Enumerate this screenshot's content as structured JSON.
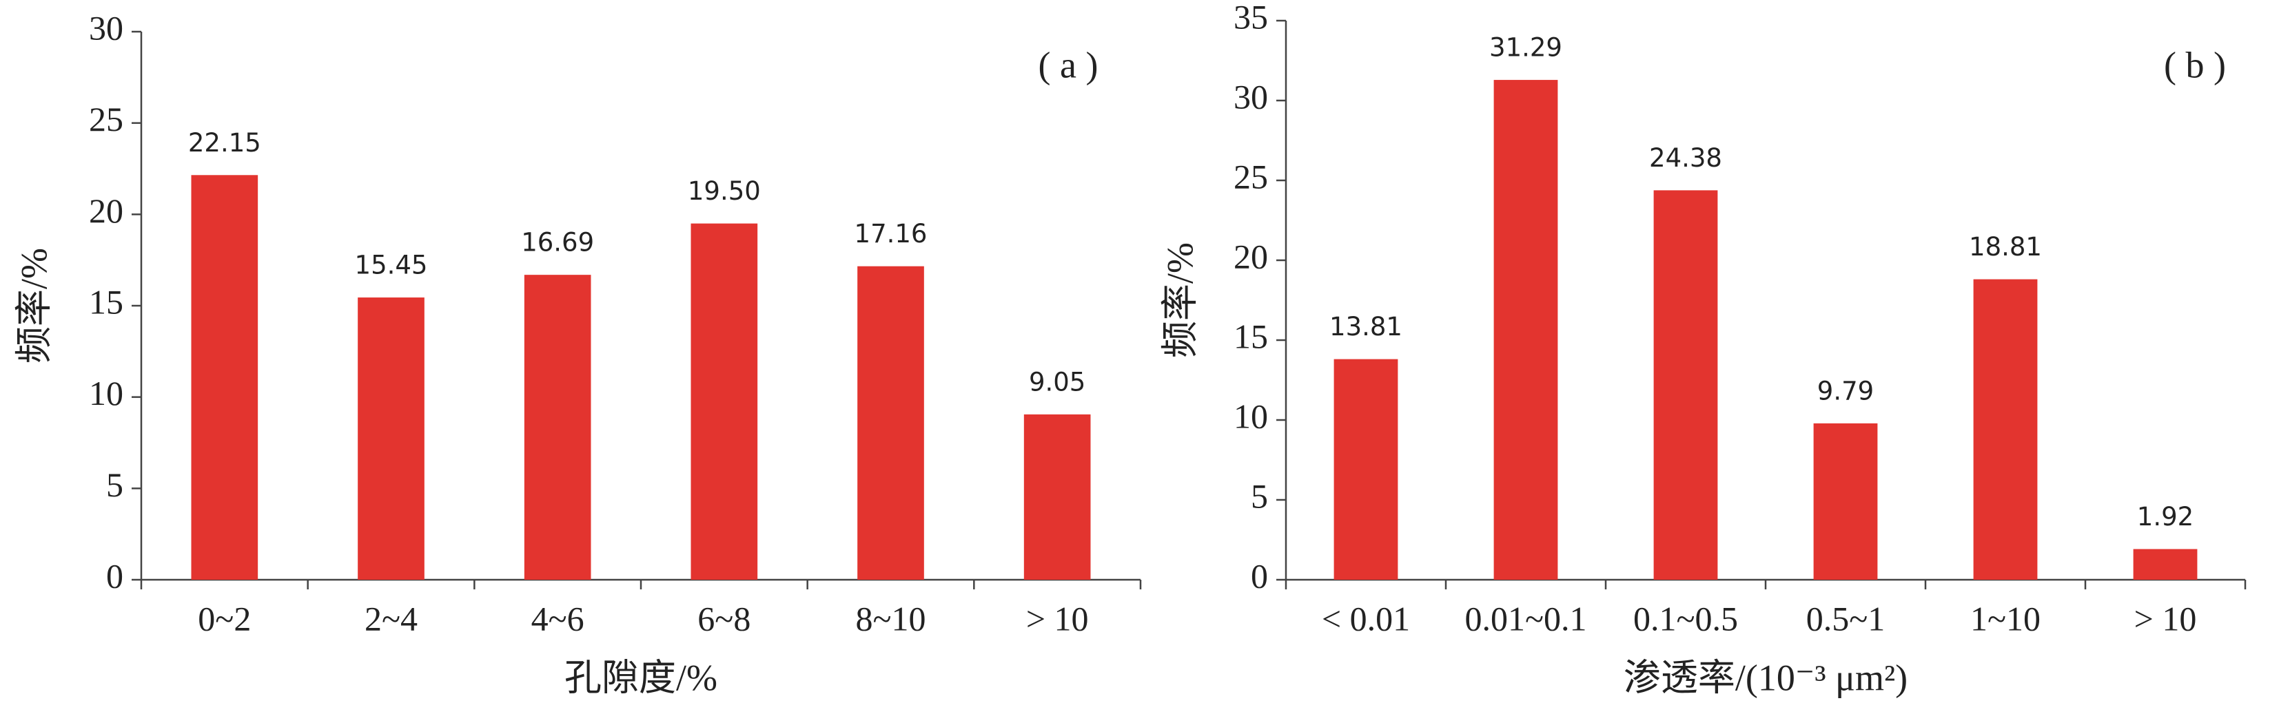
{
  "chart_data": [
    {
      "type": "bar",
      "annotation": "( a )",
      "x_label": "孔隙度/%",
      "y_label": "频率/%",
      "categories": [
        "0~2",
        "2~4",
        "4~6",
        "6~8",
        "8~10",
        "> 10"
      ],
      "values": [
        22.15,
        15.45,
        16.69,
        19.5,
        17.16,
        9.05
      ],
      "value_labels": [
        "22.15",
        "15.45",
        "16.69",
        "19.50",
        "17.16",
        "9.05"
      ],
      "color": "#e3342f",
      "ylim": [
        0,
        30
      ],
      "yticks": [
        0,
        5,
        10,
        15,
        20,
        25,
        30
      ]
    },
    {
      "type": "bar",
      "annotation": "( b )",
      "x_label": "渗透率/(10⁻³ μm²)",
      "y_label": "频率/%",
      "categories": [
        "< 0.01",
        "0.01~0.1",
        "0.1~0.5",
        "0.5~1",
        "1~10",
        "> 10"
      ],
      "values": [
        13.81,
        31.29,
        24.38,
        9.79,
        18.81,
        1.92
      ],
      "value_labels": [
        "13.81",
        "31.29",
        "24.38",
        "9.79",
        "18.81",
        "1.92"
      ],
      "color": "#e3342f",
      "ylim": [
        0,
        35
      ],
      "yticks": [
        0,
        5,
        10,
        15,
        20,
        25,
        30,
        35
      ]
    }
  ]
}
